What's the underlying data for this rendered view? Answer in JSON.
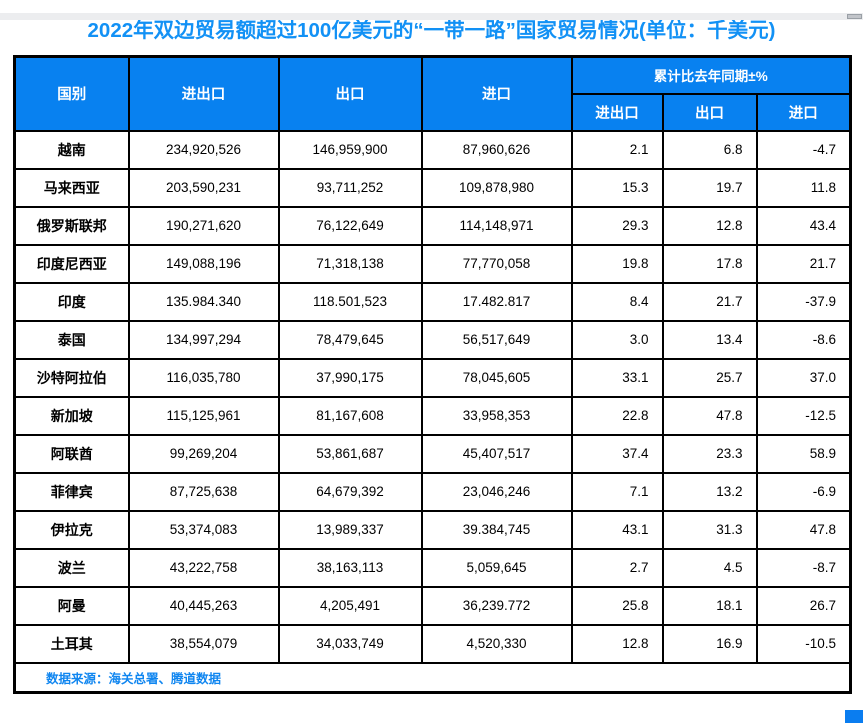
{
  "title": "2022年双边贸易额超过100亿美元的“一带一路”国家贸易情况(单位：千美元)",
  "colors": {
    "header_bg": "#0881f0",
    "title_text": "#1291f5",
    "source_text": "#1086f0",
    "border": "#000000",
    "corner_patch": "#0a7df0"
  },
  "chart_data": {
    "type": "table",
    "title": "2022年双边贸易额超过100亿美元的“一带一路”国家贸易情况(单位：千美元)",
    "headers": {
      "country": "国别",
      "total": "进出口",
      "export": "出口",
      "import": "进口",
      "yoy_group": "累计比去年同期±%",
      "yoy_total": "进出口",
      "yoy_export": "出口",
      "yoy_import": "进口"
    },
    "rows": [
      {
        "country": "越南",
        "total": "234,920,526",
        "export": "146,959,900",
        "import": "87,960,626",
        "yoy_total": "2.1",
        "yoy_export": "6.8",
        "yoy_import": "-4.7"
      },
      {
        "country": "马来西亚",
        "total": "203,590,231",
        "export": "93,711,252",
        "import": "109,878,980",
        "yoy_total": "15.3",
        "yoy_export": "19.7",
        "yoy_import": "11.8"
      },
      {
        "country": "俄罗斯联邦",
        "total": "190,271,620",
        "export": "76,122,649",
        "import": "114,148,971",
        "yoy_total": "29.3",
        "yoy_export": "12.8",
        "yoy_import": "43.4"
      },
      {
        "country": "印度尼西亚",
        "total": "149,088,196",
        "export": "71,318,138",
        "import": "77,770,058",
        "yoy_total": "19.8",
        "yoy_export": "17.8",
        "yoy_import": "21.7"
      },
      {
        "country": "印度",
        "total": "135.984.340",
        "export": "118.501,523",
        "import": "17.482.817",
        "yoy_total": "8.4",
        "yoy_export": "21.7",
        "yoy_import": "-37.9"
      },
      {
        "country": "泰国",
        "total": "134,997,294",
        "export": "78,479,645",
        "import": "56,517,649",
        "yoy_total": "3.0",
        "yoy_export": "13.4",
        "yoy_import": "-8.6"
      },
      {
        "country": "沙特阿拉伯",
        "total": "116,035,780",
        "export": "37,990,175",
        "import": "78,045,605",
        "yoy_total": "33.1",
        "yoy_export": "25.7",
        "yoy_import": "37.0"
      },
      {
        "country": "新加坡",
        "total": "115,125,961",
        "export": "81,167,608",
        "import": "33,958,353",
        "yoy_total": "22.8",
        "yoy_export": "47.8",
        "yoy_import": "-12.5"
      },
      {
        "country": "阿联酋",
        "total": "99,269,204",
        "export": "53,861,687",
        "import": "45,407,517",
        "yoy_total": "37.4",
        "yoy_export": "23.3",
        "yoy_import": "58.9"
      },
      {
        "country": "菲律宾",
        "total": "87,725,638",
        "export": "64,679,392",
        "import": "23,046,246",
        "yoy_total": "7.1",
        "yoy_export": "13.2",
        "yoy_import": "-6.9"
      },
      {
        "country": "伊拉克",
        "total": "53,374,083",
        "export": "13,989,337",
        "import": "39.384,745",
        "yoy_total": "43.1",
        "yoy_export": "31.3",
        "yoy_import": "47.8"
      },
      {
        "country": "波兰",
        "total": "43,222,758",
        "export": "38,163,113",
        "import": "5,059,645",
        "yoy_total": "2.7",
        "yoy_export": "4.5",
        "yoy_import": "-8.7"
      },
      {
        "country": "阿曼",
        "total": "40,445,263",
        "export": "4,205,491",
        "import": "36,239.772",
        "yoy_total": "25.8",
        "yoy_export": "18.1",
        "yoy_import": "26.7"
      },
      {
        "country": "土耳其",
        "total": "38,554,079",
        "export": "34,033,749",
        "import": "4,520,330",
        "yoy_total": "12.8",
        "yoy_export": "16.9",
        "yoy_import": "-10.5"
      }
    ],
    "source_note": "数据来源：海关总署、腾道数据"
  }
}
